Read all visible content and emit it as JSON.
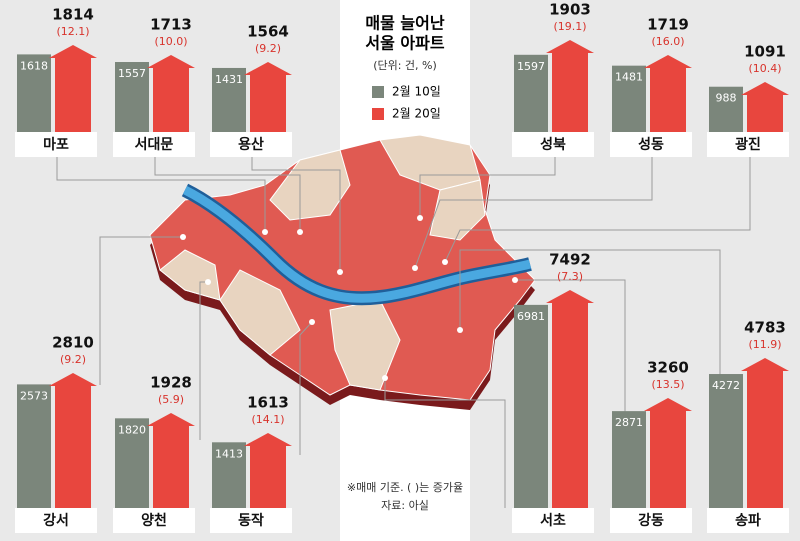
{
  "chart_data": {
    "type": "bar",
    "title": [
      "매물 늘어난",
      "서울 아파트"
    ],
    "unit": "(단위: 건, %)",
    "note": "※매매 기준. ( )는 증가율",
    "source": "자료: 아실",
    "categories": [
      "마포",
      "서대문",
      "용산",
      "성북",
      "성동",
      "광진",
      "강서",
      "양천",
      "동작",
      "서초",
      "강동",
      "송파"
    ],
    "series": [
      {
        "name": "2월 10일",
        "color": "#7b867b",
        "values": [
          1618,
          1557,
          1431,
          1597,
          1481,
          988,
          2573,
          1820,
          1413,
          6981,
          2871,
          4272
        ]
      },
      {
        "name": "2월 20일",
        "color": "#e8463e",
        "values": [
          1814,
          1713,
          1564,
          1903,
          1719,
          1091,
          2810,
          1928,
          1613,
          7492,
          3260,
          4783
        ]
      }
    ],
    "growth": {
      "values": [
        12.1,
        10.0,
        9.2,
        19.1,
        16.0,
        10.4,
        9.2,
        5.9,
        14.1,
        7.3,
        13.5,
        11.9
      ],
      "value_labels": [
        "(12.1)",
        "(10.0)",
        "(9.2)",
        "(19.1)",
        "(16.0)",
        "(10.4)",
        "(9.2)",
        "(5.9)",
        "(14.1)",
        "(7.3)",
        "(13.5)",
        "(11.9)"
      ]
    }
  }
}
